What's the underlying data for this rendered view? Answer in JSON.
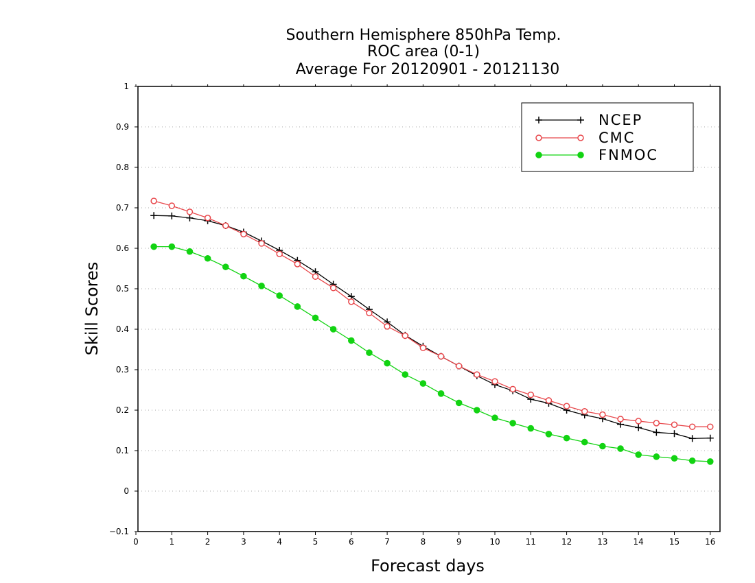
{
  "colors": {
    "ncep": "#000000",
    "cmc": "#e8474b",
    "fnmoc": "#12d312",
    "grid": "#aaaaaa"
  },
  "chart_data": {
    "type": "line",
    "title": [
      "Southern Hemisphere 850hPa Temp.",
      "ROC area (0-1)",
      "Average For 20120901 - 20121130"
    ],
    "xlabel": "Forecast days",
    "ylabel": "Skill Scores",
    "xlim": [
      0,
      16
    ],
    "ylim": [
      -0.1,
      1
    ],
    "xticks": [
      "0",
      "1",
      "2",
      "3",
      "4",
      "5",
      "6",
      "7",
      "8",
      "9",
      "10",
      "11",
      "12",
      "13",
      "14",
      "15",
      "16"
    ],
    "yticks": [
      "−0.1",
      "0",
      "0.1",
      "0.2",
      "0.3",
      "0.4",
      "0.5",
      "0.6",
      "0.7",
      "0.8",
      "0.9",
      "1"
    ],
    "grid": "horizontal dotted",
    "legend_position": "top-right",
    "x": [
      0.5,
      1,
      1.5,
      2,
      2.5,
      3,
      3.5,
      4,
      4.5,
      5,
      5.5,
      6,
      6.5,
      7,
      7.5,
      8,
      8.5,
      9,
      9.5,
      10,
      10.5,
      11,
      11.5,
      12,
      12.5,
      13,
      13.5,
      14,
      14.5,
      15,
      15.5,
      16
    ],
    "series": [
      {
        "name": "NCEP",
        "marker": "plus",
        "values": [
          0.681,
          0.68,
          0.675,
          0.668,
          0.656,
          0.64,
          0.618,
          0.595,
          0.57,
          0.542,
          0.511,
          0.481,
          0.449,
          0.418,
          0.385,
          0.358,
          0.333,
          0.309,
          0.285,
          0.263,
          0.248,
          0.227,
          0.217,
          0.2,
          0.188,
          0.179,
          0.165,
          0.157,
          0.145,
          0.142,
          0.13,
          0.131
        ]
      },
      {
        "name": "CMC",
        "marker": "open-circle",
        "values": [
          0.717,
          0.705,
          0.69,
          0.675,
          0.656,
          0.635,
          0.612,
          0.586,
          0.561,
          0.53,
          0.502,
          0.468,
          0.44,
          0.407,
          0.384,
          0.354,
          0.333,
          0.309,
          0.288,
          0.271,
          0.252,
          0.238,
          0.224,
          0.21,
          0.197,
          0.189,
          0.178,
          0.173,
          0.168,
          0.164,
          0.159,
          0.159
        ]
      },
      {
        "name": "FNMOC",
        "marker": "filled-circle",
        "values": [
          0.604,
          0.604,
          0.592,
          0.575,
          0.554,
          0.531,
          0.507,
          0.483,
          0.456,
          0.428,
          0.4,
          0.372,
          0.342,
          0.316,
          0.288,
          0.266,
          0.241,
          0.218,
          0.2,
          0.181,
          0.168,
          0.155,
          0.141,
          0.131,
          0.121,
          0.111,
          0.105,
          0.09,
          0.085,
          0.081,
          0.075,
          0.073
        ]
      }
    ]
  }
}
